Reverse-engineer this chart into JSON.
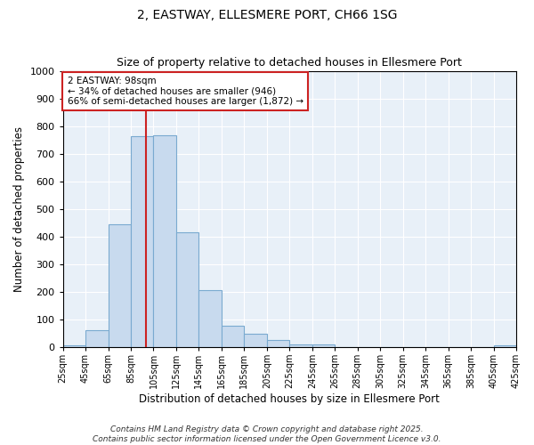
{
  "title": "2, EASTWAY, ELLESMERE PORT, CH66 1SG",
  "subtitle": "Size of property relative to detached houses in Ellesmere Port",
  "xlabel": "Distribution of detached houses by size in Ellesmere Port",
  "ylabel": "Number of detached properties",
  "bar_color": "#c8daee",
  "bar_edge_color": "#7aaad0",
  "background_color": "#e8f0f8",
  "grid_color": "#ffffff",
  "vline_x": 98,
  "vline_color": "#cc2222",
  "bin_edges": [
    25,
    45,
    65,
    85,
    105,
    125,
    145,
    165,
    185,
    205,
    225,
    245,
    265,
    285,
    305,
    325,
    345,
    365,
    385,
    405,
    425
  ],
  "bin_counts": [
    8,
    60,
    445,
    765,
    768,
    415,
    207,
    77,
    47,
    25,
    10,
    10,
    0,
    0,
    0,
    0,
    0,
    0,
    0,
    5
  ],
  "ylim": [
    0,
    1000
  ],
  "yticks": [
    0,
    100,
    200,
    300,
    400,
    500,
    600,
    700,
    800,
    900,
    1000
  ],
  "annotation_text": "2 EASTWAY: 98sqm\n← 34% of detached houses are smaller (946)\n66% of semi-detached houses are larger (1,872) →",
  "annotation_box_color": "#ffffff",
  "annotation_box_edge_color": "#cc2222",
  "footer_line1": "Contains HM Land Registry data © Crown copyright and database right 2025.",
  "footer_line2": "Contains public sector information licensed under the Open Government Licence v3.0.",
  "fig_width": 6.0,
  "fig_height": 5.0,
  "dpi": 100
}
